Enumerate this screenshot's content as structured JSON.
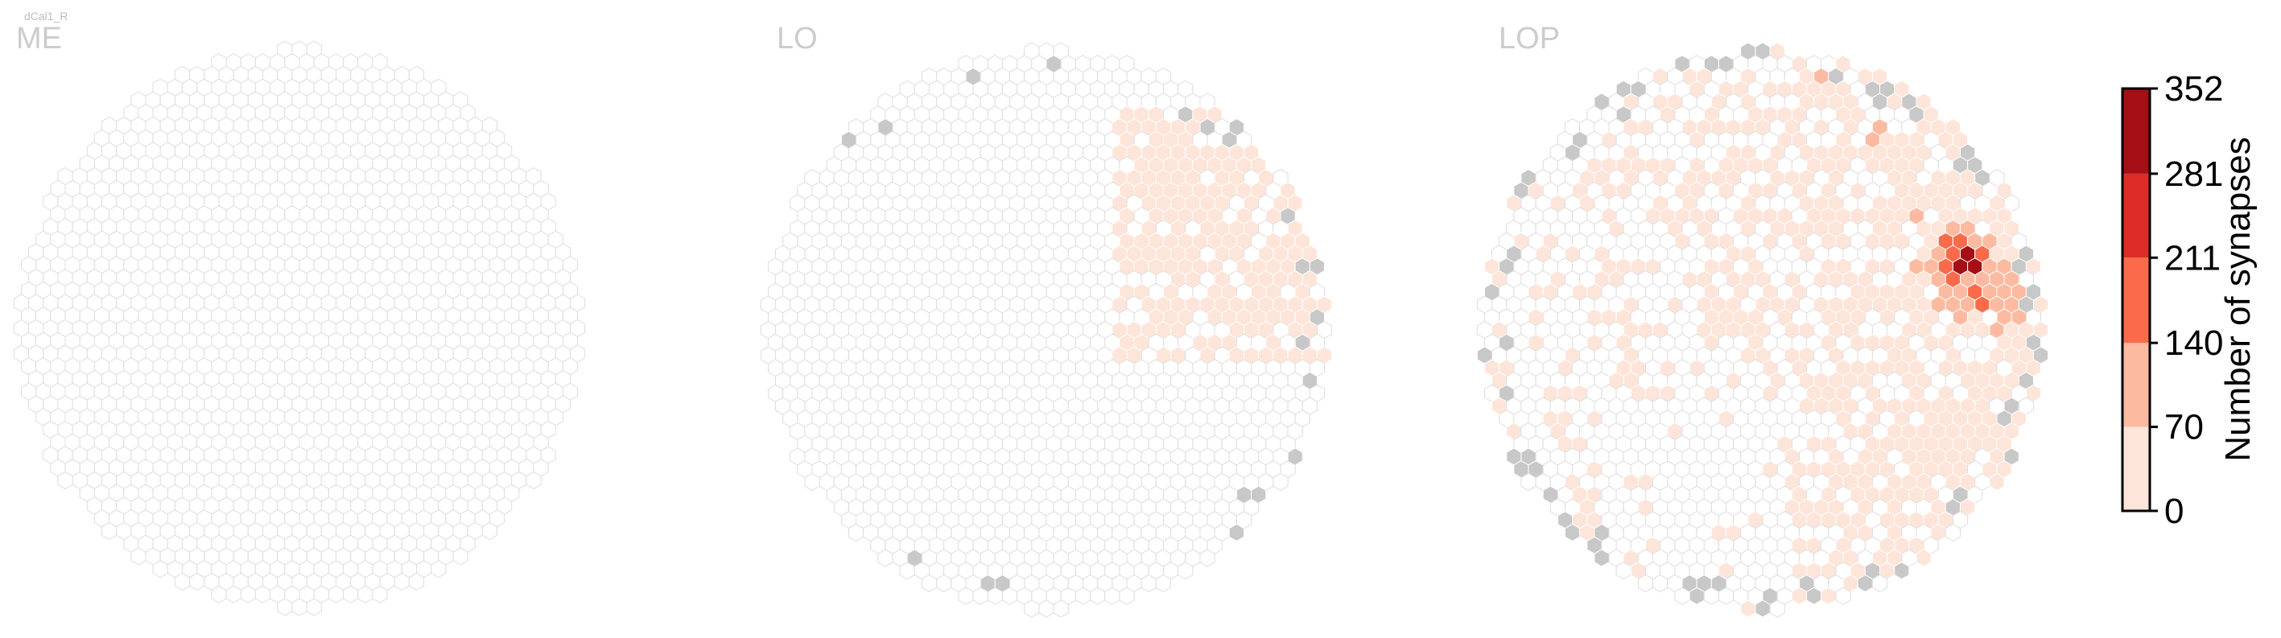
{
  "chart_data": {
    "type": "heatmap",
    "figure_label": "dCal1_R",
    "panels": [
      {
        "id": "me",
        "name": "ME",
        "fill_fraction": 0.0,
        "gray_count": 0,
        "seed": 11,
        "hotspots": []
      },
      {
        "id": "lo",
        "name": "LO",
        "fill_fraction": 0.14,
        "gray_count": 26,
        "seed": 23,
        "hotspots": [
          {
            "col": 0.78,
            "row": 0.28,
            "value": 30
          }
        ]
      },
      {
        "id": "lop",
        "name": "LOP",
        "fill_fraction": 0.55,
        "gray_count": 70,
        "seed": 47,
        "hotspots": [
          {
            "col": 0.86,
            "row": 0.36,
            "value": 352
          },
          {
            "col": 0.87,
            "row": 0.39,
            "value": 300
          },
          {
            "col": 0.84,
            "row": 0.4,
            "value": 190
          },
          {
            "col": 0.78,
            "row": 0.3,
            "value": 120
          },
          {
            "col": 0.6,
            "row": 0.05,
            "value": 110
          },
          {
            "col": 0.7,
            "row": 0.15,
            "value": 105
          },
          {
            "col": 0.9,
            "row": 0.45,
            "value": 160
          }
        ]
      }
    ],
    "colorbar": {
      "label": "Number of synapses",
      "ticks": [
        0,
        70,
        140,
        211,
        281,
        352
      ],
      "range": [
        0,
        352
      ],
      "colors": [
        "#fee5d9",
        "#fcbba1",
        "#fb6a4a",
        "#de2d26",
        "#a50f15"
      ]
    },
    "empty_color": "#ffffff",
    "empty_stroke": "#dddddd",
    "gray_color": "#c8c8c8"
  }
}
